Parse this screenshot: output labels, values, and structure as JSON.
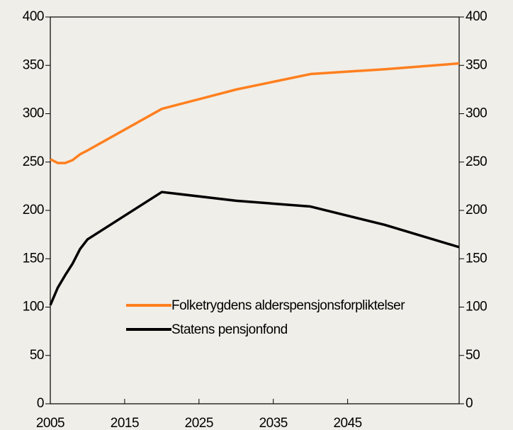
{
  "chart_data": {
    "type": "line",
    "x": [
      2005,
      2006,
      2007,
      2008,
      2009,
      2010,
      2020,
      2030,
      2040,
      2050,
      2060
    ],
    "series": [
      {
        "name": "Folketrygdens alderspensjonsforpliktelser",
        "color": "#ff7f1e",
        "values": [
          253,
          249,
          249,
          252,
          258,
          262,
          305,
          325,
          341,
          346,
          352
        ]
      },
      {
        "name": "Statens pensjonfond",
        "color": "#000000",
        "values": [
          102,
          120,
          133,
          145,
          160,
          170,
          219,
          210,
          204,
          185,
          162
        ]
      }
    ],
    "xlim": [
      2005,
      2060
    ],
    "xticks": [
      2005,
      2015,
      2025,
      2035,
      2045
    ],
    "ylim": [
      0,
      400
    ],
    "yticks": [
      0,
      50,
      100,
      150,
      200,
      250,
      300,
      350,
      400
    ],
    "y2lim": [
      0,
      400
    ],
    "y2ticks": [
      0,
      50,
      100,
      150,
      200,
      250,
      300,
      350,
      400
    ]
  }
}
